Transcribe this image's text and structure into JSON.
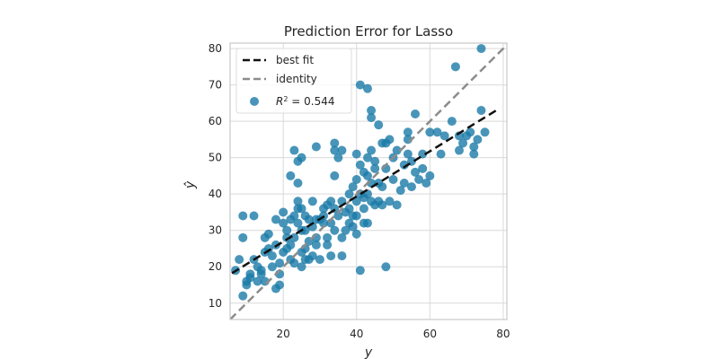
{
  "chart_data": {
    "type": "scatter",
    "title": "Prediction Error for Lasso",
    "xlabel": "y",
    "ylabel": "ŷ",
    "xlim": [
      5.5,
      81
    ],
    "ylim": [
      5.5,
      81.5
    ],
    "xticks": [
      20,
      40,
      60,
      80
    ],
    "yticks": [
      10,
      20,
      30,
      40,
      50,
      60,
      70,
      80
    ],
    "grid": true,
    "legend_position": "top-left",
    "colors": {
      "points": "#1a7aa8",
      "best_fit": "#111111",
      "identity": "#8c8c8c",
      "grid": "#d9d9d9",
      "spine": "#c8c8c8"
    },
    "legend": [
      {
        "label": "best fit",
        "kind": "line-dashed"
      },
      {
        "label": "identity",
        "kind": "line-dashed"
      },
      {
        "label": "R² = 0.544",
        "label_main": "R",
        "label_sup": "2",
        "label_rest": " = 0.544",
        "kind": "marker"
      }
    ],
    "best_fit_line": {
      "slope": 0.621,
      "intercept": 14.5,
      "x_range": [
        6,
        78
      ]
    },
    "identity_line": {
      "x_range": [
        5.5,
        81.5
      ]
    },
    "points": [
      [
        7,
        19
      ],
      [
        8,
        22
      ],
      [
        9,
        34
      ],
      [
        9,
        28
      ],
      [
        9,
        12
      ],
      [
        10,
        15
      ],
      [
        10,
        16
      ],
      [
        11,
        18
      ],
      [
        11,
        17
      ],
      [
        12,
        34
      ],
      [
        12,
        22
      ],
      [
        13,
        16
      ],
      [
        13,
        20
      ],
      [
        14,
        18
      ],
      [
        14,
        19
      ],
      [
        15,
        28
      ],
      [
        15,
        16
      ],
      [
        15,
        24
      ],
      [
        16,
        25
      ],
      [
        16,
        29
      ],
      [
        17,
        23
      ],
      [
        17,
        20
      ],
      [
        18,
        33
      ],
      [
        18,
        26
      ],
      [
        18,
        14
      ],
      [
        19,
        18
      ],
      [
        19,
        15
      ],
      [
        19,
        21
      ],
      [
        20,
        24
      ],
      [
        20,
        32
      ],
      [
        20,
        35
      ],
      [
        21,
        25
      ],
      [
        21,
        28
      ],
      [
        21,
        30
      ],
      [
        22,
        26
      ],
      [
        22,
        22
      ],
      [
        22,
        45
      ],
      [
        22,
        33
      ],
      [
        23,
        34
      ],
      [
        23,
        52
      ],
      [
        23,
        28
      ],
      [
        23,
        21
      ],
      [
        24,
        49
      ],
      [
        24,
        36
      ],
      [
        24,
        38
      ],
      [
        24,
        32
      ],
      [
        24,
        43
      ],
      [
        25,
        50
      ],
      [
        25,
        20
      ],
      [
        25,
        30
      ],
      [
        25,
        36
      ],
      [
        25,
        24
      ],
      [
        26,
        34
      ],
      [
        26,
        30
      ],
      [
        26,
        25
      ],
      [
        26,
        22
      ],
      [
        27,
        33
      ],
      [
        27,
        27
      ],
      [
        27,
        22
      ],
      [
        28,
        31
      ],
      [
        28,
        38
      ],
      [
        28,
        23
      ],
      [
        29,
        53
      ],
      [
        29,
        28
      ],
      [
        29,
        26
      ],
      [
        29,
        33
      ],
      [
        30,
        33
      ],
      [
        30,
        22
      ],
      [
        31,
        36
      ],
      [
        31,
        34
      ],
      [
        31,
        32
      ],
      [
        32,
        37
      ],
      [
        32,
        28
      ],
      [
        32,
        26
      ],
      [
        33,
        38
      ],
      [
        33,
        32
      ],
      [
        33,
        23
      ],
      [
        34,
        54
      ],
      [
        34,
        52
      ],
      [
        34,
        36
      ],
      [
        34,
        30
      ],
      [
        34,
        45
      ],
      [
        35,
        50
      ],
      [
        35,
        34
      ],
      [
        36,
        52
      ],
      [
        36,
        38
      ],
      [
        36,
        28
      ],
      [
        36,
        23
      ],
      [
        37,
        35
      ],
      [
        37,
        30
      ],
      [
        38,
        40
      ],
      [
        38,
        32
      ],
      [
        38,
        36
      ],
      [
        39,
        42
      ],
      [
        39,
        34
      ],
      [
        39,
        31
      ],
      [
        40,
        51
      ],
      [
        40,
        44
      ],
      [
        40,
        38
      ],
      [
        40,
        34
      ],
      [
        40,
        29
      ],
      [
        41,
        48
      ],
      [
        41,
        19
      ],
      [
        41,
        70
      ],
      [
        41,
        40
      ],
      [
        42,
        46
      ],
      [
        42,
        39
      ],
      [
        42,
        32
      ],
      [
        42,
        36
      ],
      [
        43,
        69
      ],
      [
        43,
        50
      ],
      [
        43,
        45
      ],
      [
        43,
        40
      ],
      [
        43,
        32
      ],
      [
        44,
        63
      ],
      [
        44,
        61
      ],
      [
        44,
        52
      ],
      [
        44,
        43
      ],
      [
        44,
        38
      ],
      [
        45,
        49
      ],
      [
        45,
        47
      ],
      [
        45,
        37
      ],
      [
        46,
        59
      ],
      [
        46,
        43
      ],
      [
        46,
        38
      ],
      [
        47,
        54
      ],
      [
        47,
        42
      ],
      [
        47,
        37
      ],
      [
        48,
        54
      ],
      [
        48,
        47
      ],
      [
        48,
        20
      ],
      [
        49,
        55
      ],
      [
        49,
        38
      ],
      [
        50,
        50
      ],
      [
        50,
        44
      ],
      [
        51,
        52
      ],
      [
        51,
        37
      ],
      [
        52,
        41
      ],
      [
        53,
        48
      ],
      [
        53,
        43
      ],
      [
        54,
        57
      ],
      [
        54,
        55
      ],
      [
        54,
        51
      ],
      [
        55,
        49
      ],
      [
        55,
        42
      ],
      [
        56,
        62
      ],
      [
        56,
        46
      ],
      [
        57,
        44
      ],
      [
        58,
        47
      ],
      [
        58,
        51
      ],
      [
        59,
        43
      ],
      [
        60,
        57
      ],
      [
        60,
        45
      ],
      [
        62,
        57
      ],
      [
        63,
        51
      ],
      [
        64,
        56
      ],
      [
        66,
        60
      ],
      [
        67,
        75
      ],
      [
        68,
        52
      ],
      [
        68,
        56
      ],
      [
        69,
        54
      ],
      [
        70,
        56
      ],
      [
        71,
        57
      ],
      [
        72,
        53
      ],
      [
        72,
        51
      ],
      [
        73,
        55
      ],
      [
        74,
        80
      ],
      [
        74,
        63
      ],
      [
        75,
        57
      ]
    ]
  }
}
